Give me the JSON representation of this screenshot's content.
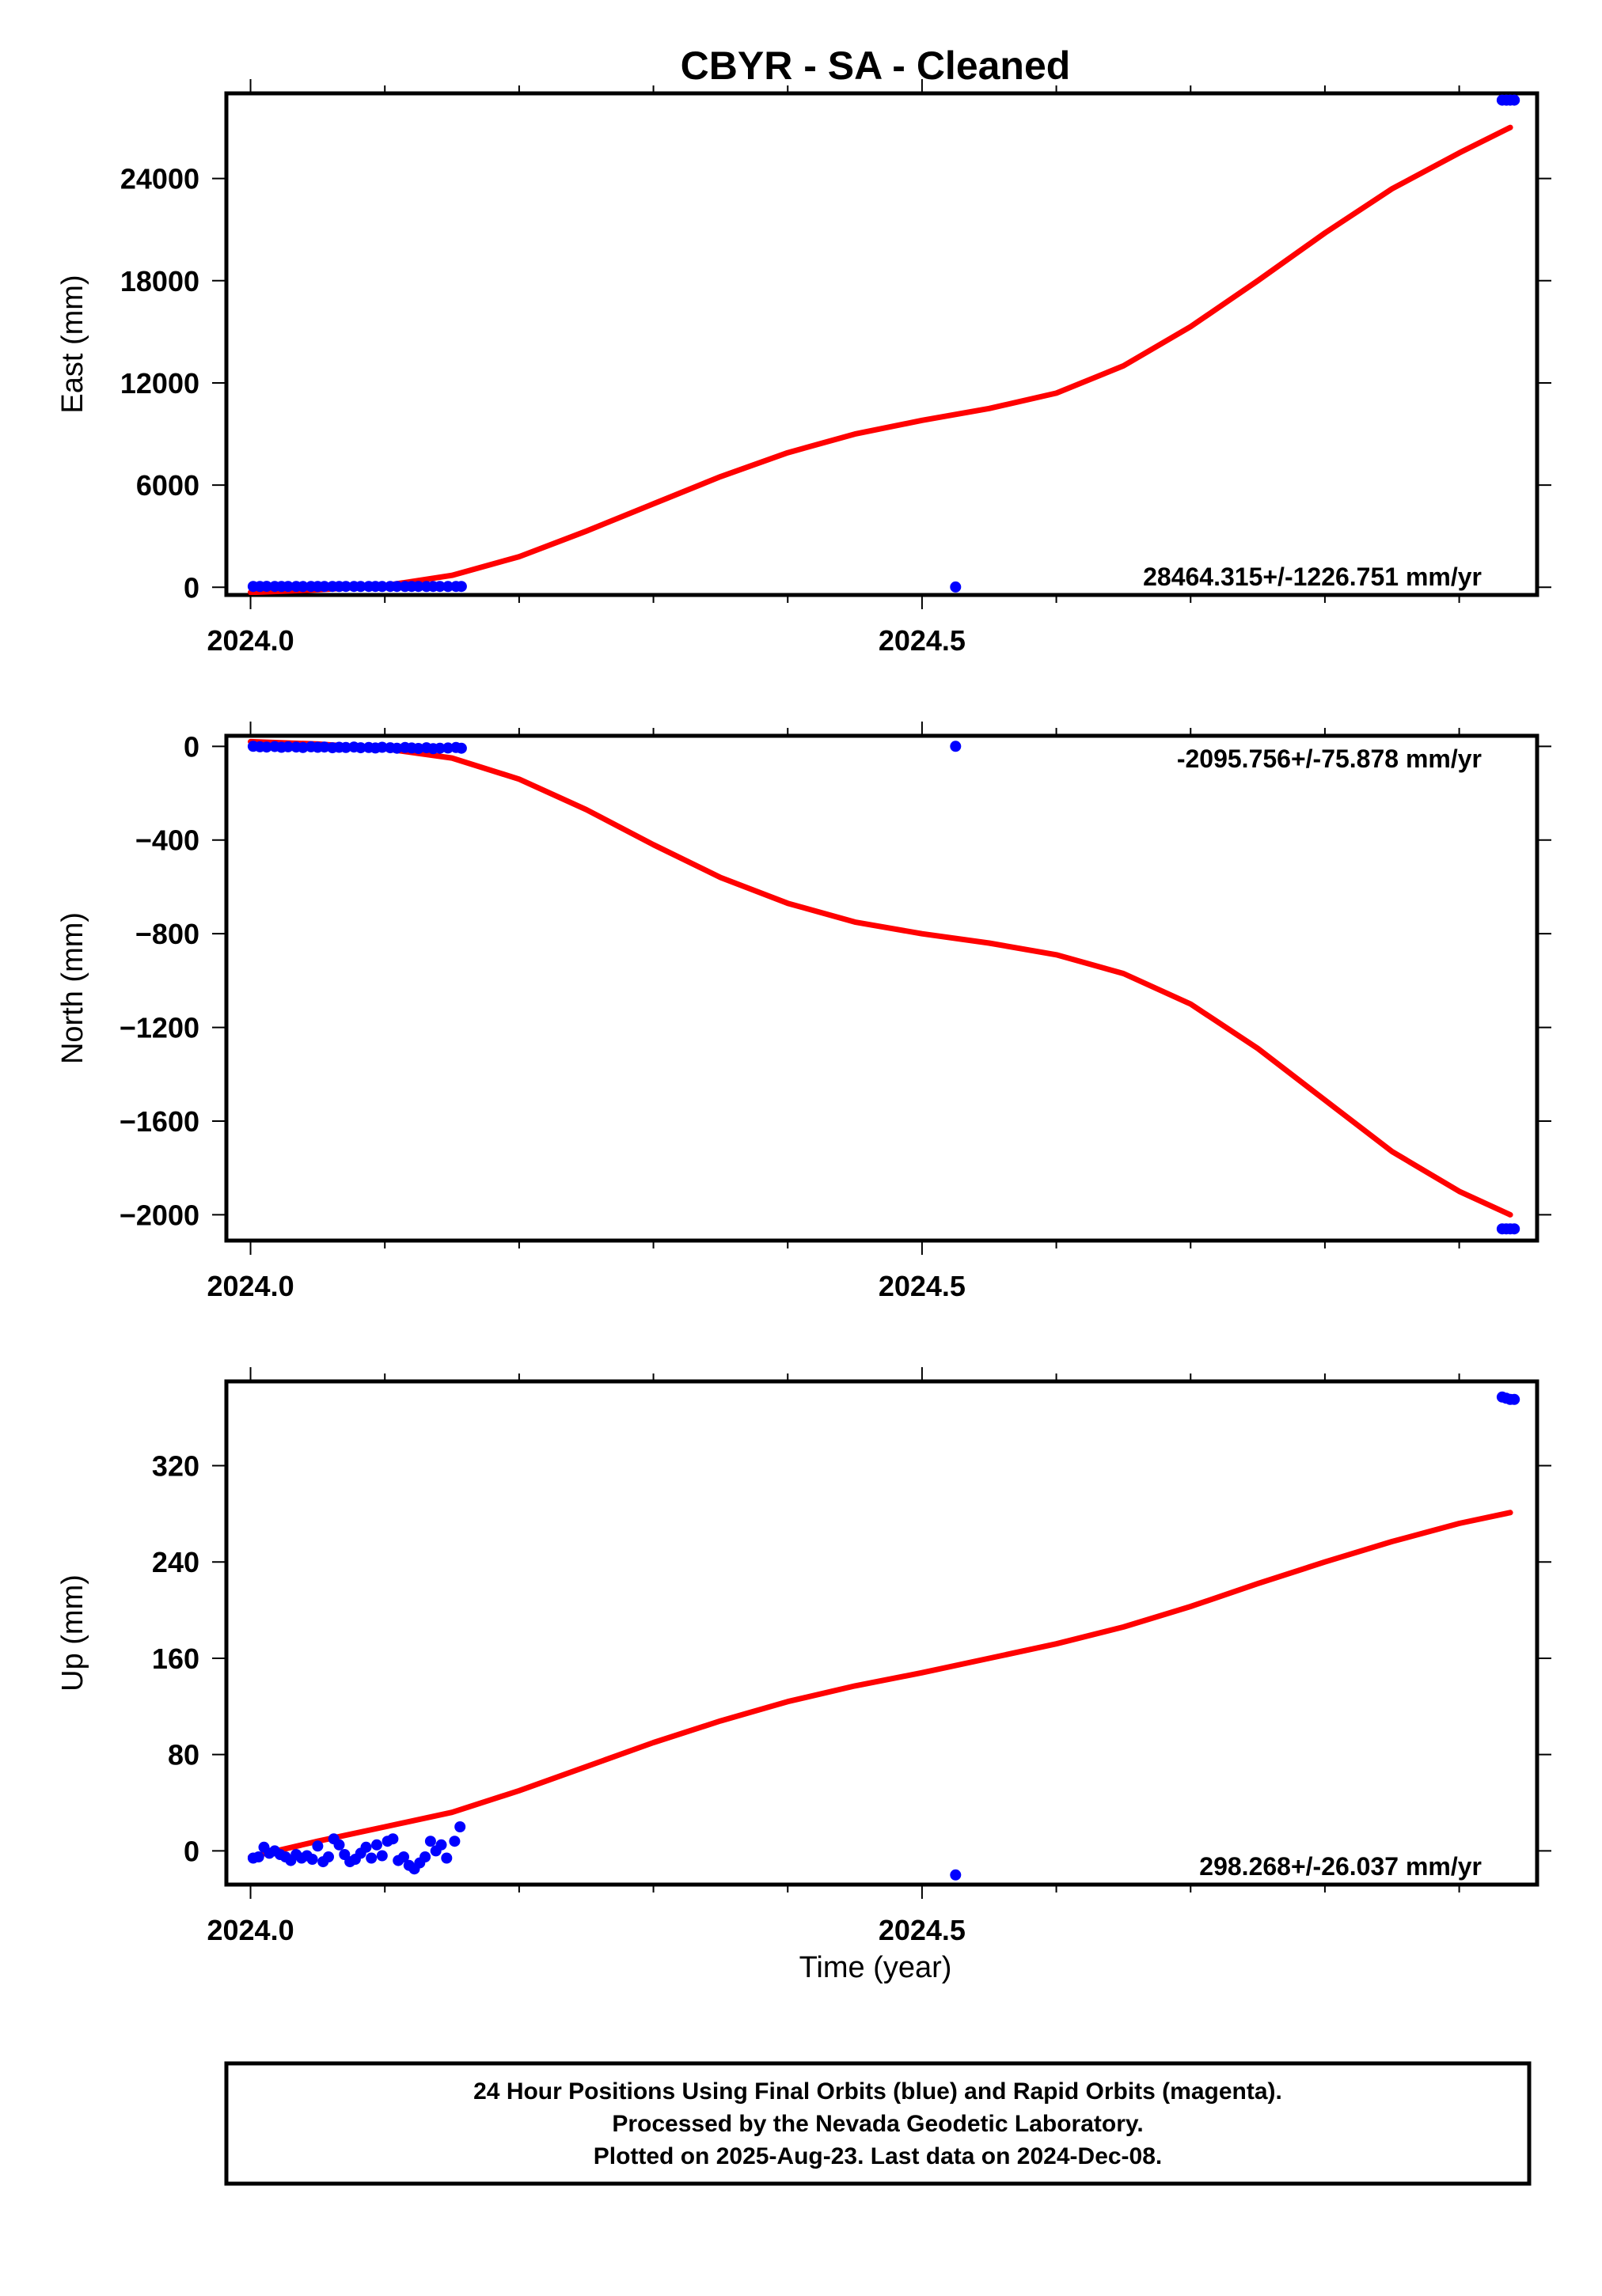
{
  "colors": {
    "fit": "#ff0000",
    "final_orbits": "#0000ff",
    "frame": "#000000"
  },
  "chart_data": {
    "type": "scatter",
    "title": "CBYR  - SA - Cleaned",
    "xlabel": "Time (year)",
    "xlim": [
      2023.982,
      2024.958
    ],
    "x_ticks": [
      "2024.0",
      "2024.5"
    ],
    "panels": [
      {
        "key": "east",
        "ylabel": "East (mm)",
        "ylim": [
          -450,
          29000
        ],
        "yticks": [
          0,
          6000,
          12000,
          18000,
          24000
        ],
        "ytick_labels": [
          "0",
          "6000",
          "12000",
          "18000",
          "24000"
        ],
        "rate": "28464.315+/-1226.751 mm/yr",
        "series": [
          {
            "type": "points",
            "x": [
              2024.002,
              2024.007,
              2024.012,
              2024.018,
              2024.023,
              2024.028,
              2024.034,
              2024.039,
              2024.045,
              2024.05,
              2024.055,
              2024.061,
              2024.066,
              2024.071,
              2024.077,
              2024.082,
              2024.088,
              2024.093,
              2024.098,
              2024.104,
              2024.109,
              2024.115,
              2024.12,
              2024.125,
              2024.131,
              2024.136,
              2024.141,
              2024.147,
              2024.153,
              2024.157,
              2024.525,
              2024.932,
              2024.935,
              2024.938,
              2024.941
            ],
            "y": [
              50,
              45,
              55,
              50,
              48,
              52,
              50,
              47,
              53,
              49,
              51,
              50,
              48,
              52,
              50,
              49,
              51,
              50,
              47,
              53,
              50,
              48,
              52,
              50,
              49,
              51,
              50,
              48,
              52,
              50,
              20,
              28600,
              28600,
              28600,
              28600
            ]
          },
          {
            "type": "fit",
            "x": [
              2024.0,
              2024.05,
              2024.1,
              2024.15,
              2024.2,
              2024.25,
              2024.3,
              2024.35,
              2024.4,
              2024.45,
              2024.5,
              2024.55,
              2024.6,
              2024.65,
              2024.7,
              2024.75,
              2024.8,
              2024.85,
              2024.9,
              2024.938
            ],
            "y": [
              -300,
              -150,
              100,
              700,
              1800,
              3300,
              4900,
              6500,
              7900,
              9000,
              9800,
              10500,
              11400,
              13000,
              15300,
              18000,
              20800,
              23400,
              25500,
              27000
            ]
          }
        ]
      },
      {
        "key": "north",
        "ylabel": "North (mm)",
        "ylim": [
          -2110,
          45
        ],
        "yticks": [
          0,
          -400,
          -800,
          -1200,
          -1600,
          -2000
        ],
        "ytick_labels": [
          "0",
          "−400",
          "−800",
          "−1200",
          "−1600",
          "−2000"
        ],
        "rate": "-2095.756+/-75.878 mm/yr",
        "series": [
          {
            "type": "points",
            "x": [
              2024.002,
              2024.007,
              2024.012,
              2024.018,
              2024.023,
              2024.028,
              2024.034,
              2024.039,
              2024.045,
              2024.05,
              2024.055,
              2024.061,
              2024.066,
              2024.071,
              2024.077,
              2024.082,
              2024.088,
              2024.093,
              2024.098,
              2024.104,
              2024.109,
              2024.115,
              2024.12,
              2024.125,
              2024.131,
              2024.136,
              2024.141,
              2024.147,
              2024.153,
              2024.157,
              2024.525,
              2024.932,
              2024.935,
              2024.938,
              2024.941
            ],
            "y": [
              0,
              -2,
              -3,
              -1,
              -4,
              -2,
              -3,
              -5,
              -2,
              -4,
              -3,
              -6,
              -4,
              -5,
              -3,
              -6,
              -5,
              -7,
              -4,
              -6,
              -8,
              -5,
              -7,
              -9,
              -6,
              -10,
              -8,
              -7,
              -5,
              -8,
              0,
              -2060,
              -2060,
              -2060,
              -2060
            ]
          },
          {
            "type": "fit",
            "x": [
              2024.0,
              2024.05,
              2024.1,
              2024.15,
              2024.2,
              2024.25,
              2024.3,
              2024.35,
              2024.4,
              2024.45,
              2024.5,
              2024.55,
              2024.6,
              2024.65,
              2024.7,
              2024.75,
              2024.8,
              2024.85,
              2024.9,
              2024.938
            ],
            "y": [
              20,
              10,
              -10,
              -50,
              -140,
              -270,
              -420,
              -560,
              -670,
              -750,
              -800,
              -840,
              -890,
              -970,
              -1100,
              -1290,
              -1510,
              -1730,
              -1900,
              -2000
            ]
          }
        ]
      },
      {
        "key": "up",
        "ylabel": "Up (mm)",
        "ylim": [
          -28,
          390
        ],
        "yticks": [
          0,
          80,
          160,
          240,
          320
        ],
        "ytick_labels": [
          "0",
          "80",
          "160",
          "240",
          "320"
        ],
        "rate": "298.268+/-26.037 mm/yr",
        "series": [
          {
            "type": "points",
            "x": [
              2024.002,
              2024.006,
              2024.01,
              2024.014,
              2024.018,
              2024.022,
              2024.026,
              2024.03,
              2024.034,
              2024.038,
              2024.042,
              2024.046,
              2024.05,
              2024.054,
              2024.058,
              2024.062,
              2024.066,
              2024.07,
              2024.074,
              2024.078,
              2024.082,
              2024.086,
              2024.09,
              2024.094,
              2024.098,
              2024.102,
              2024.106,
              2024.11,
              2024.114,
              2024.118,
              2024.122,
              2024.126,
              2024.13,
              2024.134,
              2024.138,
              2024.142,
              2024.146,
              2024.152,
              2024.156,
              2024.525,
              2024.932,
              2024.935,
              2024.938,
              2024.941
            ],
            "y": [
              -6,
              -5,
              3,
              -2,
              0,
              -3,
              -5,
              -8,
              -3,
              -6,
              -4,
              -7,
              4,
              -9,
              -5,
              10,
              5,
              -3,
              -9,
              -7,
              -2,
              3,
              -6,
              5,
              -4,
              8,
              10,
              -8,
              -5,
              -12,
              -15,
              -10,
              -5,
              8,
              0,
              5,
              -6,
              8,
              20,
              -20,
              377,
              376,
              375,
              375
            ]
          },
          {
            "type": "fit",
            "x": [
              2024.0,
              2024.05,
              2024.1,
              2024.15,
              2024.2,
              2024.25,
              2024.3,
              2024.35,
              2024.4,
              2024.45,
              2024.5,
              2024.55,
              2024.6,
              2024.65,
              2024.7,
              2024.75,
              2024.8,
              2024.85,
              2024.9,
              2024.938
            ],
            "y": [
              -5,
              8,
              20,
              32,
              50,
              70,
              90,
              108,
              124,
              137,
              148,
              160,
              172,
              186,
              203,
              222,
              240,
              257,
              272,
              281
            ]
          }
        ]
      }
    ]
  },
  "footer": {
    "line1": "24 Hour Positions Using Final Orbits (blue) and Rapid Orbits (magenta).",
    "line2": "Processed by the Nevada Geodetic Laboratory.",
    "line3": "Plotted on 2025-Aug-23. Last data on 2024-Dec-08."
  }
}
